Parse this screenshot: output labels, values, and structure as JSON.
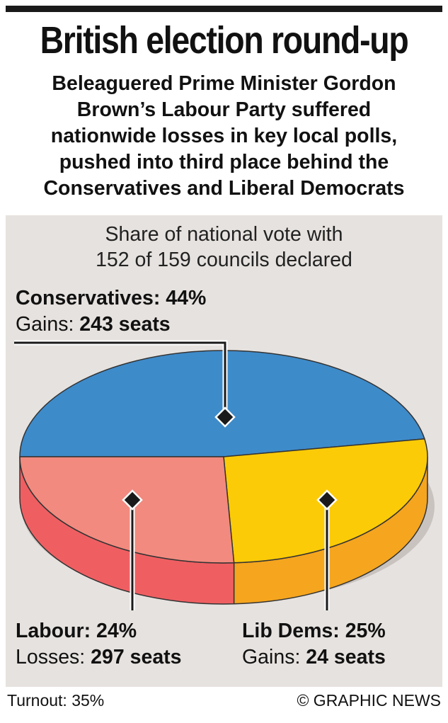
{
  "header": {
    "title": "British election round-up",
    "subtitle_lines": [
      "Beleaguered Prime Minister Gordon",
      "Brown’s Labour Party suffered",
      "nationwide losses in key local polls,",
      "pushed into third place behind the",
      "Conservatives and Liberal Democrats"
    ]
  },
  "chart_data": {
    "type": "pie",
    "title_lines": [
      "Share of national vote with",
      "152 of 159 councils declared"
    ],
    "slices": [
      {
        "name": "Conservatives",
        "value": 44,
        "value_label": "44%",
        "seat_prefix": "Gains:",
        "seats": "243 seats",
        "color": "#3e8bca",
        "side_color": "#2f6ea3"
      },
      {
        "name": "Lib Dems",
        "value": 25,
        "value_label": "25%",
        "seat_prefix": "Gains:",
        "seats": "24 seats",
        "color": "#fccb07",
        "side_color": "#f5a51e"
      },
      {
        "name": "Labour",
        "value": 24,
        "value_label": "24%",
        "seat_prefix": "Losses:",
        "seats": "297 seats",
        "color": "#f28a7f",
        "side_color": "#ef5f62"
      }
    ]
  },
  "footer": {
    "turnout": "Turnout: 35%",
    "credit": "© GRAPHIC NEWS"
  }
}
